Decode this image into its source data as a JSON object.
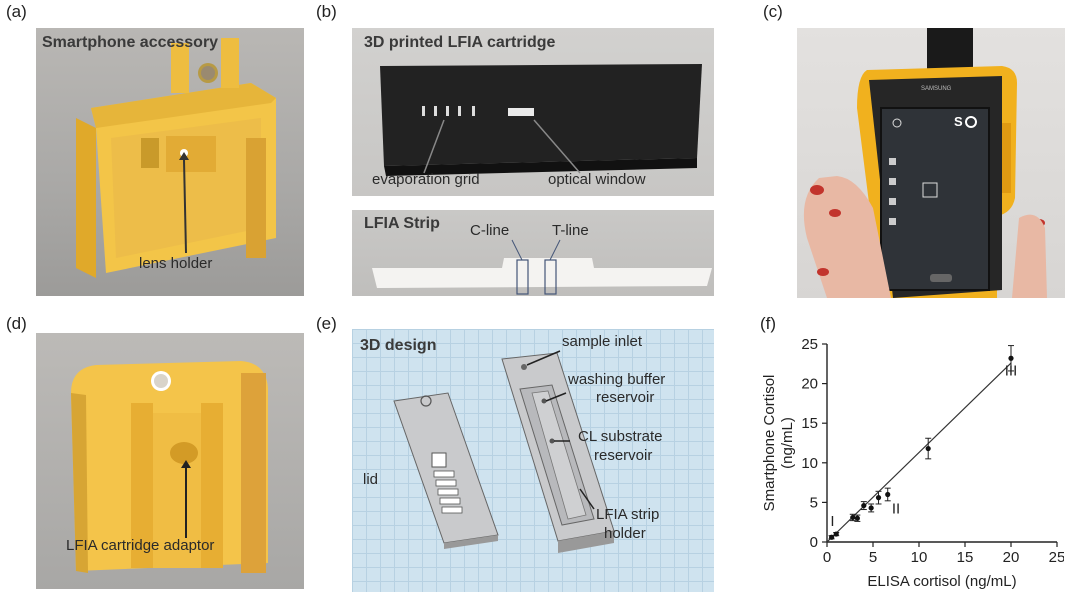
{
  "panels": {
    "a": {
      "label": "(a)",
      "title": "Smartphone accessory",
      "annotations": {
        "lens": "lens holder"
      }
    },
    "b": {
      "label": "(b)",
      "title": "3D printed LFIA cartridge",
      "annotations": {
        "grid": "evaporation grid",
        "window": "optical window"
      }
    },
    "b2": {
      "title": "LFIA Strip",
      "annotations": {
        "cline": "C-line",
        "tline": "T-line"
      }
    },
    "c": {
      "label": "(c)"
    },
    "d": {
      "label": "(d)",
      "annotations": {
        "adaptor": "LFIA cartridge adaptor"
      }
    },
    "e": {
      "label": "(e)",
      "title": "3D design",
      "annotations": {
        "inlet": "sample inlet",
        "wash1": "washing buffer",
        "wash2": "reservoir",
        "cl1": "CL substrate",
        "cl2": "reservoir",
        "lfia1": "LFIA strip",
        "lfia2": "holder",
        "lid": "lid"
      }
    },
    "f": {
      "label": "(f)"
    }
  },
  "phone": {
    "brand": "SAMSUNG",
    "mode": "S"
  },
  "chart_data": {
    "type": "scatter",
    "xlabel": "ELISA cortisol (ng/mL)",
    "ylabel": "Smartphone Cortisol (ng/mL)",
    "ylabel_lines": [
      "Smartphone Cortisol",
      "(ng/mL)"
    ],
    "xlim": [
      0,
      25
    ],
    "ylim": [
      0,
      25
    ],
    "x_ticks": [
      "0",
      "5",
      "10",
      "15",
      "20",
      "25"
    ],
    "y_ticks": [
      "0",
      "5",
      "10",
      "15",
      "20",
      "25"
    ],
    "points": [
      {
        "x": 0.5,
        "y": 0.6,
        "err": 0.2
      },
      {
        "x": 1.0,
        "y": 1.0,
        "err": 0.2
      },
      {
        "x": 2.8,
        "y": 3.1,
        "err": 0.4
      },
      {
        "x": 3.3,
        "y": 3.0,
        "err": 0.4
      },
      {
        "x": 4.0,
        "y": 4.6,
        "err": 0.5
      },
      {
        "x": 4.8,
        "y": 4.3,
        "err": 0.5
      },
      {
        "x": 5.6,
        "y": 5.6,
        "err": 0.8
      },
      {
        "x": 6.6,
        "y": 6.0,
        "err": 0.8
      },
      {
        "x": 11.0,
        "y": 11.8,
        "err": 1.3
      },
      {
        "x": 20.0,
        "y": 23.2,
        "err": 1.6
      }
    ],
    "fit_line": {
      "x": [
        0,
        20
      ],
      "y": [
        0,
        22.6
      ]
    },
    "annotations": [
      {
        "text": "I",
        "x": 0.6,
        "y": 2.0
      },
      {
        "text": "II",
        "x": 7.5,
        "y": 3.6
      },
      {
        "text": "III",
        "x": 20.0,
        "y": 21.0
      }
    ]
  }
}
